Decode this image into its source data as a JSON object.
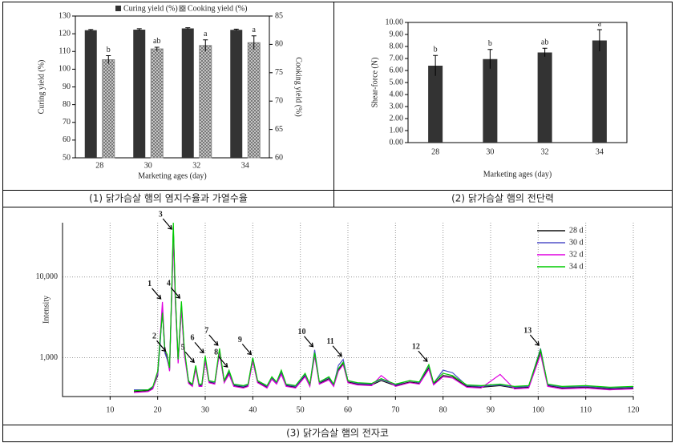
{
  "chart_data": [
    {
      "type": "bar",
      "caption": "(1) 닭가슴살 햄의 염지수율과 가열수율",
      "categories": [
        "28",
        "30",
        "32",
        "34"
      ],
      "x_label": "Marketing ages (day)",
      "y_label": "Curing yield (%)",
      "y2_label": "Cooking yield (%)",
      "ylim": [
        50,
        130
      ],
      "yticks": [
        50,
        60,
        70,
        80,
        90,
        100,
        110,
        120,
        130
      ],
      "y2lim": [
        60,
        85
      ],
      "y2ticks": [
        60,
        65,
        70,
        75,
        80,
        85
      ],
      "legend": "top",
      "series": [
        {
          "name": "Curing yield (%)",
          "color": "#333333",
          "values": [
            122,
            122.3,
            123,
            122.2
          ],
          "errors": [
            0.4,
            0.5,
            0.4,
            0.4
          ]
        },
        {
          "name": "Cooking yield (%)",
          "color": "#b0b0b0",
          "hatch": true,
          "axis": "y2",
          "values": [
            77.3,
            79.2,
            79.8,
            80.3
          ],
          "errors": [
            0.7,
            0.3,
            1.0,
            1.2
          ],
          "labels": [
            "b",
            "ab",
            "a",
            "a"
          ]
        }
      ]
    },
    {
      "type": "bar",
      "caption": "(2) 닭가슴살 햄의 전단력",
      "categories": [
        "28",
        "30",
        "32",
        "34"
      ],
      "x_label": "Marketing ages (day)",
      "y_label": "Shear-force (N)",
      "ylim": [
        0,
        10
      ],
      "yticks": [
        {
          "value": 0,
          "label": "0.00"
        },
        {
          "value": 1,
          "label": "1.00"
        },
        {
          "value": 2,
          "label": "2.00"
        },
        {
          "value": 3,
          "label": "3.00"
        },
        {
          "value": 4,
          "label": "4.00"
        },
        {
          "value": 5,
          "label": "5.00"
        },
        {
          "value": 6,
          "label": "6.00"
        },
        {
          "value": 7,
          "label": "7.00"
        },
        {
          "value": 8,
          "label": "8.00"
        },
        {
          "value": 9,
          "label": "9.00"
        },
        {
          "value": 10,
          "label": "10.00"
        }
      ],
      "color": "#333333",
      "values": [
        6.4,
        6.95,
        7.5,
        8.5
      ],
      "errors": [
        0.85,
        0.8,
        0.35,
        0.9
      ],
      "labels": [
        "b",
        "b",
        "ab",
        "a"
      ]
    },
    {
      "type": "line",
      "caption": "(3) 닭가슴살 햄의 전자코",
      "y_label": "Intensity",
      "log_y": true,
      "grid": true,
      "legend": "upper right",
      "xlim": [
        0,
        120
      ],
      "xticks": [
        10,
        20,
        30,
        40,
        50,
        60,
        70,
        80,
        90,
        100,
        110,
        120
      ],
      "ylim": [
        330,
        47000
      ],
      "yticks": [
        {
          "value": 1000,
          "label": "1,000"
        },
        {
          "value": 10000,
          "label": "10,000"
        }
      ],
      "x": [
        15,
        18,
        19,
        20,
        20.5,
        21,
        21.5,
        22,
        22.5,
        23,
        23.3,
        23.7,
        24.3,
        25,
        25.6,
        26.5,
        27.3,
        28,
        28.7,
        29.3,
        30,
        30.8,
        32,
        33,
        34,
        35,
        36,
        38,
        39,
        40,
        41,
        43,
        44,
        45,
        46,
        47,
        49,
        51,
        52,
        53,
        54,
        56,
        57,
        58,
        59,
        60,
        62,
        65,
        67,
        70,
        73,
        75,
        77,
        78,
        80,
        82,
        85,
        88,
        92,
        95,
        98,
        100.5,
        102,
        105,
        110,
        115,
        120
      ],
      "series": [
        {
          "name": "28 d",
          "color": "#111111",
          "values": [
            380,
            390,
            420,
            600,
            1500,
            4200,
            1200,
            1000,
            700,
            8000,
            40000,
            6000,
            900,
            4300,
            1200,
            500,
            450,
            750,
            450,
            450,
            950,
            500,
            480,
            1200,
            500,
            650,
            450,
            430,
            450,
            950,
            500,
            430,
            550,
            480,
            650,
            450,
            430,
            600,
            450,
            1100,
            480,
            550,
            450,
            700,
            850,
            500,
            470,
            460,
            520,
            450,
            500,
            480,
            750,
            470,
            600,
            580,
            440,
            430,
            450,
            420,
            430,
            1200,
            450,
            420,
            430,
            410,
            420
          ]
        },
        {
          "name": "30 d",
          "color": "#5050c8",
          "values": [
            400,
            400,
            430,
            620,
            1400,
            4000,
            1150,
            950,
            720,
            7500,
            38000,
            5800,
            880,
            4600,
            1250,
            520,
            460,
            780,
            460,
            460,
            1000,
            510,
            490,
            1150,
            520,
            680,
            460,
            440,
            460,
            1000,
            520,
            440,
            570,
            490,
            680,
            460,
            440,
            620,
            460,
            1250,
            490,
            570,
            460,
            800,
            950,
            520,
            480,
            470,
            540,
            460,
            520,
            490,
            800,
            480,
            700,
            650,
            450,
            440,
            460,
            430,
            440,
            1300,
            460,
            430,
            440,
            420,
            430
          ]
        },
        {
          "name": "32 d",
          "color": "#e000e0",
          "values": [
            370,
            380,
            410,
            650,
            1700,
            4900,
            1300,
            1050,
            680,
            7000,
            30000,
            5200,
            850,
            4000,
            1100,
            480,
            440,
            720,
            440,
            440,
            900,
            490,
            470,
            1150,
            490,
            620,
            440,
            420,
            440,
            900,
            490,
            420,
            540,
            470,
            620,
            440,
            420,
            580,
            440,
            1050,
            470,
            530,
            440,
            680,
            820,
            490,
            460,
            450,
            600,
            440,
            490,
            470,
            720,
            460,
            580,
            560,
            430,
            420,
            620,
            410,
            420,
            1100,
            440,
            410,
            420,
            400,
            410
          ]
        },
        {
          "name": "34 d",
          "color": "#00cc00",
          "values": [
            390,
            400,
            440,
            680,
            1600,
            3600,
            1250,
            1100,
            750,
            9000,
            47000,
            6500,
            950,
            5000,
            1300,
            510,
            470,
            800,
            470,
            470,
            1050,
            520,
            500,
            1300,
            520,
            700,
            470,
            450,
            470,
            1000,
            520,
            450,
            580,
            500,
            700,
            470,
            450,
            640,
            470,
            1150,
            500,
            580,
            470,
            730,
            880,
            520,
            490,
            480,
            550,
            470,
            520,
            500,
            820,
            490,
            640,
            600,
            460,
            450,
            470,
            440,
            450,
            1250,
            470,
            440,
            450,
            430,
            440
          ]
        }
      ],
      "peak_labels": [
        {
          "label": "1",
          "x": 21
        },
        {
          "label": "2",
          "x": 22
        },
        {
          "label": "3",
          "x": 23.3
        },
        {
          "label": "4",
          "x": 25
        },
        {
          "label": "5",
          "x": 28
        },
        {
          "label": "6",
          "x": 30
        },
        {
          "label": "7",
          "x": 33
        },
        {
          "label": "8",
          "x": 35
        },
        {
          "label": "9",
          "x": 40
        },
        {
          "label": "10",
          "x": 53
        },
        {
          "label": "11",
          "x": 59
        },
        {
          "label": "12",
          "x": 77
        },
        {
          "label": "13",
          "x": 100.5
        }
      ]
    }
  ]
}
